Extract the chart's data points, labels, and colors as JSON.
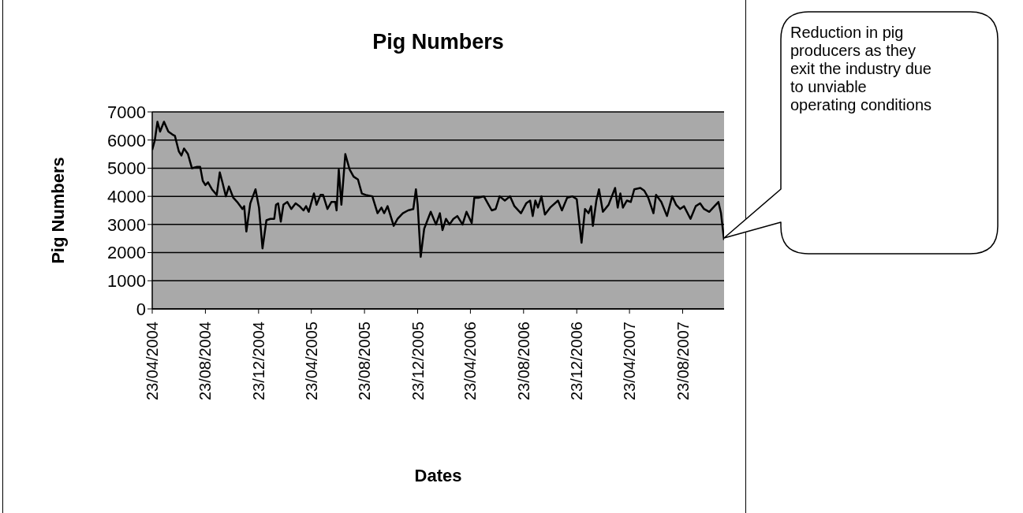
{
  "chart_data": {
    "type": "line",
    "title": "Pig Numbers",
    "xlabel": "Dates",
    "ylabel": "Pig Numbers",
    "x": [
      "2004-04-23",
      "2004-04-29",
      "2004-05-05",
      "2004-05-11",
      "2004-05-20",
      "2004-05-30",
      "2004-06-08",
      "2004-06-14",
      "2004-06-23",
      "2004-06-29",
      "2004-07-05",
      "2004-07-14",
      "2004-07-23",
      "2004-08-04",
      "2004-08-11",
      "2004-08-17",
      "2004-08-23",
      "2004-08-29",
      "2004-09-07",
      "2004-09-18",
      "2004-09-25",
      "2004-10-01",
      "2004-10-09",
      "2004-10-16",
      "2004-10-26",
      "2004-11-04",
      "2004-11-16",
      "2004-11-20",
      "2004-11-25",
      "2004-12-04",
      "2004-12-16",
      "2004-12-24",
      "2005-01-01",
      "2005-01-10",
      "2005-01-19",
      "2005-01-28",
      "2005-02-01",
      "2005-02-06",
      "2005-02-12",
      "2005-02-18",
      "2005-02-27",
      "2005-03-08",
      "2005-03-18",
      "2005-03-27",
      "2005-04-05",
      "2005-04-11",
      "2005-04-17",
      "2005-04-29",
      "2005-05-05",
      "2005-05-14",
      "2005-05-20",
      "2005-05-30",
      "2005-06-08",
      "2005-06-17",
      "2005-06-20",
      "2005-06-25",
      "2005-07-01",
      "2005-07-10",
      "2005-07-20",
      "2005-07-29",
      "2005-08-08",
      "2005-08-17",
      "2005-08-26",
      "2005-09-10",
      "2005-09-22",
      "2005-10-01",
      "2005-10-07",
      "2005-10-15",
      "2005-10-29",
      "2005-11-07",
      "2005-11-19",
      "2005-12-01",
      "2005-12-13",
      "2005-12-19",
      "2005-12-23",
      "2005-12-30",
      "2006-01-07",
      "2006-01-22",
      "2006-02-03",
      "2006-02-12",
      "2006-02-18",
      "2006-02-26",
      "2006-03-06",
      "2006-03-15",
      "2006-03-24",
      "2006-04-05",
      "2006-04-14",
      "2006-04-26",
      "2006-05-02",
      "2006-05-11",
      "2006-05-24",
      "2006-06-02",
      "2006-06-11",
      "2006-06-20",
      "2006-06-29",
      "2006-07-11",
      "2006-07-23",
      "2006-08-02",
      "2006-08-17",
      "2006-08-29",
      "2006-09-07",
      "2006-09-13",
      "2006-09-19",
      "2006-09-25",
      "2006-10-03",
      "2006-10-11",
      "2006-10-23",
      "2006-11-10",
      "2006-11-19",
      "2006-12-01",
      "2006-12-13",
      "2006-12-23",
      "2007-01-03",
      "2007-01-11",
      "2007-01-19",
      "2007-01-25",
      "2007-01-29",
      "2007-02-06",
      "2007-02-12",
      "2007-02-21",
      "2007-03-06",
      "2007-03-21",
      "2007-03-27",
      "2007-04-02",
      "2007-04-08",
      "2007-04-17",
      "2007-04-26",
      "2007-05-04",
      "2007-05-18",
      "2007-05-27",
      "2007-06-05",
      "2007-06-17",
      "2007-06-23",
      "2007-07-05",
      "2007-07-18",
      "2007-07-30",
      "2007-08-08",
      "2007-08-17",
      "2007-08-26",
      "2007-09-10",
      "2007-09-22",
      "2007-10-02",
      "2007-10-11",
      "2007-10-23",
      "2007-11-04",
      "2007-11-13",
      "2007-11-19",
      "2007-11-26"
    ],
    "series": [
      {
        "color": "#000000",
        "values": [
          5650,
          6000,
          6650,
          6300,
          6650,
          6300,
          6200,
          6150,
          5600,
          5450,
          5700,
          5500,
          5000,
          5050,
          5050,
          4550,
          4400,
          4500,
          4250,
          4050,
          4850,
          4500,
          4000,
          4350,
          3950,
          3800,
          3550,
          3650,
          2750,
          3750,
          4250,
          3600,
          2150,
          3150,
          3200,
          3200,
          3700,
          3750,
          3100,
          3700,
          3800,
          3550,
          3750,
          3650,
          3500,
          3650,
          3450,
          4100,
          3700,
          4050,
          4050,
          3550,
          3800,
          3800,
          3500,
          4950,
          3700,
          5500,
          4950,
          4700,
          4600,
          4100,
          4050,
          4000,
          3400,
          3600,
          3400,
          3650,
          2950,
          3200,
          3400,
          3500,
          3550,
          4250,
          3700,
          1850,
          2850,
          3450,
          3000,
          3400,
          2800,
          3200,
          3000,
          3200,
          3300,
          3000,
          3450,
          3050,
          3950,
          3950,
          4000,
          3750,
          3500,
          3550,
          4000,
          3850,
          4000,
          3650,
          3400,
          3750,
          3850,
          3300,
          3850,
          3600,
          4000,
          3350,
          3600,
          3850,
          3500,
          3950,
          4000,
          3900,
          2350,
          3550,
          3400,
          3650,
          2950,
          3850,
          4250,
          3450,
          3700,
          4300,
          3600,
          4100,
          3600,
          3850,
          3800,
          4250,
          4300,
          4200,
          3950,
          3400,
          4050,
          3800,
          3300,
          4000,
          3700,
          3550,
          3650,
          3200,
          3650,
          3750,
          3550,
          3450,
          3650,
          3800,
          3400,
          2450
        ]
      }
    ],
    "xlim": [
      "2004-04-23",
      "2007-11-26"
    ],
    "xticks": [
      {
        "value": "2004-04-23",
        "label": "23/04/2004"
      },
      {
        "value": "2004-08-23",
        "label": "23/08/2004"
      },
      {
        "value": "2004-12-23",
        "label": "23/12/2004"
      },
      {
        "value": "2005-04-23",
        "label": "23/04/2005"
      },
      {
        "value": "2005-08-23",
        "label": "23/08/2005"
      },
      {
        "value": "2005-12-23",
        "label": "23/12/2005"
      },
      {
        "value": "2006-04-23",
        "label": "23/04/2006"
      },
      {
        "value": "2006-08-23",
        "label": "23/08/2006"
      },
      {
        "value": "2006-12-23",
        "label": "23/12/2006"
      },
      {
        "value": "2007-04-23",
        "label": "23/04/2007"
      },
      {
        "value": "2007-08-23",
        "label": "23/08/2007"
      }
    ],
    "ylim": [
      0,
      7000
    ],
    "yticks": [
      0,
      1000,
      2000,
      3000,
      4000,
      5000,
      6000,
      7000
    ],
    "grid": "y",
    "marker": "none",
    "line_style": "solid",
    "annotations": [
      "Reduction in pig producers as they exit the industry due to unviable operating conditions"
    ]
  }
}
